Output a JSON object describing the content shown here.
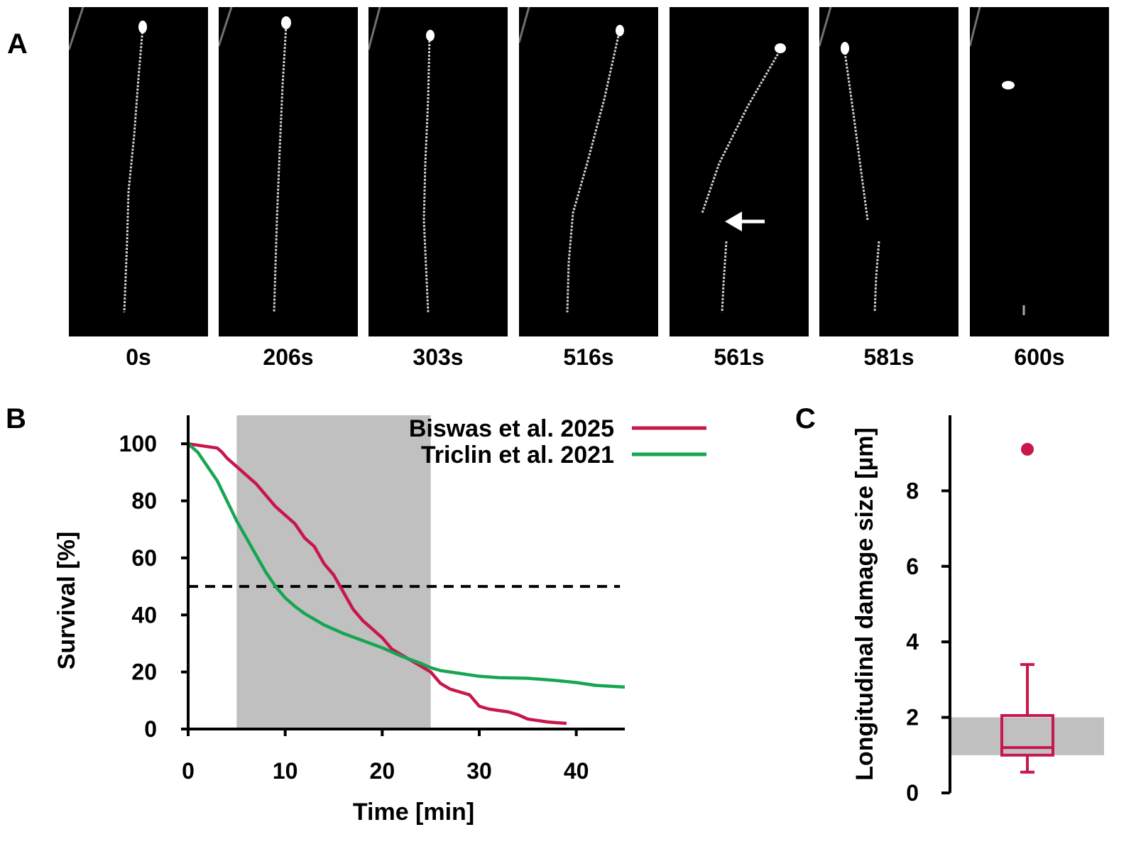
{
  "panels": {
    "a": "A",
    "b": "B",
    "c": "C"
  },
  "panel_a": {
    "frames": [
      {
        "time": "0s"
      },
      {
        "time": "206s"
      },
      {
        "time": "303s"
      },
      {
        "time": "516s"
      },
      {
        "time": "561s"
      },
      {
        "time": "581s"
      },
      {
        "time": "600s"
      }
    ]
  },
  "chart_data": [
    {
      "type": "line",
      "title": "",
      "xlabel": "Time [min]",
      "ylabel": "Survival [%]",
      "xlim": [
        0,
        45
      ],
      "ylim": [
        0,
        110
      ],
      "xticks": [
        0,
        10,
        20,
        30,
        40
      ],
      "yticks": [
        0,
        20,
        40,
        60,
        80,
        100
      ],
      "shaded_x_range": [
        5,
        25
      ],
      "reference_line": {
        "y": 50,
        "style": "dashed"
      },
      "legend_position": "top-right",
      "colors": {
        "Biswas et al. 2025": "#c8174b",
        "Triclin et al. 2021": "#16a651",
        "shade": "#c0c0c0"
      },
      "series": [
        {
          "name": "Biswas et al. 2025",
          "x": [
            0,
            1,
            2,
            3,
            3.5,
            4,
            5,
            6,
            7,
            8,
            9,
            10,
            11,
            12,
            13,
            14,
            15,
            16,
            17,
            18,
            19,
            20,
            21,
            22,
            23,
            24,
            25,
            26,
            27,
            28,
            29,
            30,
            31,
            32,
            33,
            34,
            35,
            36,
            37,
            38,
            39
          ],
          "y": [
            100,
            99.5,
            99,
            98.5,
            97,
            95,
            92,
            89,
            86,
            82,
            78,
            75,
            72,
            67,
            64,
            58,
            54,
            48,
            42,
            38,
            35,
            32,
            28,
            26,
            24,
            22,
            20,
            16,
            14,
            13,
            12,
            8,
            7,
            6.5,
            6,
            5,
            3.5,
            3,
            2.5,
            2.2,
            2
          ]
        },
        {
          "name": "Triclin et al. 2021",
          "x": [
            0,
            1,
            2,
            3,
            4,
            5,
            6,
            7,
            8,
            9,
            10,
            11,
            12,
            13,
            14,
            15,
            16,
            18,
            20,
            22,
            24,
            25,
            26,
            28,
            30,
            32,
            35,
            38,
            40,
            42,
            45
          ],
          "y": [
            100,
            97,
            92,
            87,
            80,
            73,
            67,
            61,
            55,
            50,
            46,
            43,
            40.5,
            38.5,
            36.5,
            35,
            33.5,
            31,
            28.5,
            25.5,
            23,
            21.5,
            20.5,
            19.5,
            18.5,
            18,
            17.8,
            17,
            16.3,
            15.3,
            14.7
          ]
        }
      ]
    },
    {
      "type": "box",
      "title": "",
      "xlabel": "",
      "ylabel": "Longitudinal damage size [µm]",
      "ylim": [
        0,
        10
      ],
      "yticks": [
        0,
        2,
        4,
        6,
        8
      ],
      "shaded_y_range": [
        1,
        2
      ],
      "colors": {
        "box": "#c8174b",
        "shade": "#c0c0c0"
      },
      "box": {
        "whisker_low": 0.55,
        "q1": 1.0,
        "median": 1.2,
        "q3": 2.05,
        "whisker_high": 3.4,
        "outliers": [
          9.1
        ]
      }
    }
  ]
}
